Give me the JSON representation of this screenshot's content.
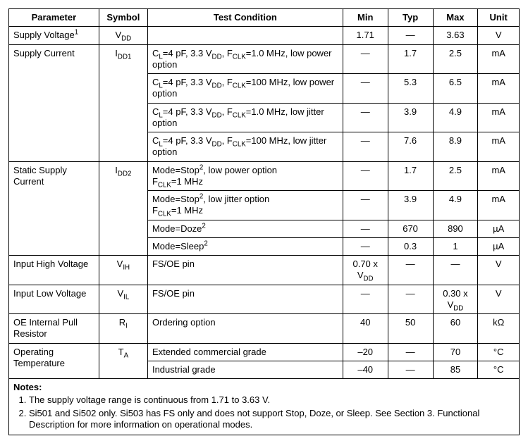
{
  "headers": {
    "parameter": "Parameter",
    "symbol": "Symbol",
    "condition": "Test Condition",
    "min": "Min",
    "typ": "Typ",
    "max": "Max",
    "unit": "Unit"
  },
  "dash": "—",
  "rows": {
    "supply_voltage": {
      "param_text": "Supply Voltage",
      "param_sup": "1",
      "sym_pre": "V",
      "sym_sub": "DD",
      "cond": "",
      "min": "1.71",
      "typ": "—",
      "max": "3.63",
      "unit": "V"
    },
    "supply_current": {
      "param": "Supply Current",
      "sym_pre": "I",
      "sym_sub": "DD1",
      "r1": {
        "cond_pre": "C",
        "cond_sub1": "L",
        "cond_mid": "=4 pF, 3.3 V",
        "cond_sub2": "DD",
        "cond_mid2": ", F",
        "cond_sub3": "CLK",
        "cond_tail": "=1.0 MHz, low power option",
        "min": "—",
        "typ": "1.7",
        "max": "2.5",
        "unit": "mA"
      },
      "r2": {
        "cond_tail": "=100 MHz, low power option",
        "min": "—",
        "typ": "5.3",
        "max": "6.5",
        "unit": "mA"
      },
      "r3": {
        "cond_tail": "=1.0 MHz, low jitter option",
        "min": "—",
        "typ": "3.9",
        "max": "4.9",
        "unit": "mA"
      },
      "r4": {
        "cond_tail": "=100 MHz, low jitter option",
        "min": "—",
        "typ": "7.6",
        "max": "8.9",
        "unit": "mA"
      }
    },
    "static_supply": {
      "param": "Static Supply Current",
      "sym_pre": "I",
      "sym_sub": "DD2",
      "r1": {
        "cond_pre": "Mode=Stop",
        "cond_sup": "2",
        "cond_mid": ", low power option",
        "cond_br": "F",
        "cond_sub": "CLK",
        "cond_tail": "=1 MHz",
        "min": "—",
        "typ": "1.7",
        "max": "2.5",
        "unit": "mA"
      },
      "r2": {
        "cond_mid": ", low jitter option",
        "min": "—",
        "typ": "3.9",
        "max": "4.9",
        "unit": "mA"
      },
      "r3": {
        "cond_pre": "Mode=Doze",
        "cond_sup": "2",
        "min": "—",
        "typ": "670",
        "max": "890",
        "unit": "µA"
      },
      "r4": {
        "cond_pre": "Mode=Sleep",
        "cond_sup": "2",
        "min": "—",
        "typ": "0.3",
        "max": "1",
        "unit": "µA"
      }
    },
    "vih": {
      "param": "Input High Voltage",
      "sym_pre": "V",
      "sym_sub": "IH",
      "cond": "FS/OE pin",
      "min_pre": "0.70 x V",
      "min_sub": "DD",
      "typ": "—",
      "max": "—",
      "unit": "V"
    },
    "vil": {
      "param": "Input Low Voltage",
      "sym_pre": "V",
      "sym_sub": "IL",
      "cond": "FS/OE pin",
      "min": "—",
      "typ": "—",
      "max_pre": "0.30 x V",
      "max_sub": "DD",
      "unit": "V"
    },
    "ri": {
      "param": "OE Internal Pull Resistor",
      "sym_pre": "R",
      "sym_sub": "I",
      "cond": "Ordering option",
      "min": "40",
      "typ": "50",
      "max": "60",
      "unit": "kΩ"
    },
    "temp": {
      "param": "Operating Temperature",
      "sym_pre": "T",
      "sym_sub": "A",
      "r1": {
        "cond": "Extended commercial grade",
        "min": "–20",
        "typ": "—",
        "max": "70",
        "unit": "°C"
      },
      "r2": {
        "cond": "Industrial grade",
        "min": "–40",
        "typ": "—",
        "max": "85",
        "unit": "°C"
      }
    }
  },
  "notes": {
    "heading": "Notes:",
    "n1": "The supply voltage range is continuous from 1.71 to 3.63 V.",
    "n2": "Si501 and Si502 only. Si503 has FS only and does not support Stop, Doze, or Sleep. See Section 3. Functional Description for more information on operational modes."
  }
}
